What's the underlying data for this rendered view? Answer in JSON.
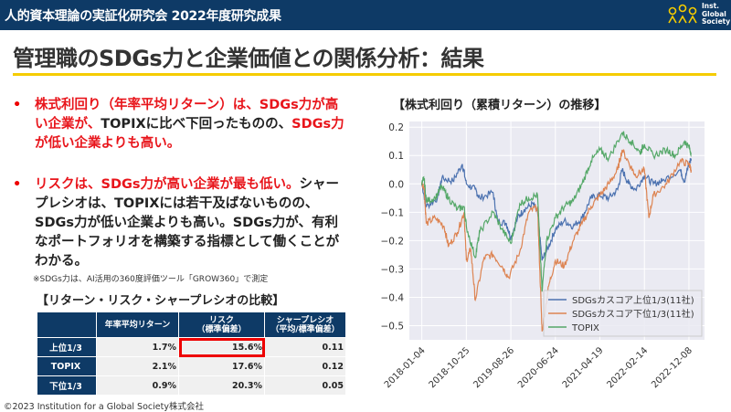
{
  "header": {
    "title": "人的資本理論の実証化研究会 2022年度研究成果",
    "logo_text": [
      "Inst.",
      "Global",
      "Society"
    ]
  },
  "page_title": "管理職のSDGs力と企業価値との関係分析：結果",
  "bullets": [
    {
      "marker": "•",
      "segments": [
        {
          "text": "株式利回り（年率平均リターン）は、SDGs力が高い企業が、",
          "color": "red"
        },
        {
          "text": "TOPIXに比べ下回ったものの、",
          "color": "black"
        },
        {
          "text": "SDGs力が低い企業よりも高い。",
          "color": "red"
        }
      ]
    },
    {
      "marker": "•",
      "segments": [
        {
          "text": "リスクは、SDGs力が高い企業が最も低い。",
          "color": "red"
        },
        {
          "text": "シャープレシオは、TOPIXには若干及ばないものの、SDGs力が低い企業よりも高い。SDGs力が、有利なポートフォリオを構築する指標として働くことがわかる。",
          "color": "black"
        }
      ]
    }
  ],
  "note": "※SDGs力は、AI活用の360度評価ツール「GROW360」で測定",
  "table": {
    "title": "【リターン・リスク・シャープレシオの比較】",
    "headers": [
      "",
      "年率平均リターン",
      "リスク\n（標準偏差）",
      "シャープレシオ\n（平均/標準偏差）"
    ],
    "rows": [
      [
        "上位1/3",
        "1.7%",
        "15.6%",
        "0.11"
      ],
      [
        "TOPIX",
        "2.1%",
        "17.6%",
        "0.12"
      ],
      [
        "下位1/3",
        "0.9%",
        "20.3%",
        "0.05"
      ]
    ],
    "highlight": "上位1/3 リスク"
  },
  "copyright": "©2023  Institution for a Global Society株式会社",
  "chart_data": {
    "type": "line",
    "title": "【株式利回り（累積リターン）の推移】",
    "xlabel": "",
    "ylabel": "",
    "x_ticks": [
      "2018-01-04",
      "2018-10-25",
      "2019-08-26",
      "2020-06-24",
      "2021-04-19",
      "2022-02-14",
      "2022-12-08"
    ],
    "y_ticks": [
      0.2,
      0.1,
      0.0,
      -0.1,
      -0.2,
      -0.3,
      -0.4,
      -0.5
    ],
    "y_tick_labels": [
      "0.2",
      "0.1",
      "0.0",
      "−0.1",
      "−0.2",
      "−0.3",
      "−0.4",
      "−0.5"
    ],
    "ylim": [
      -0.55,
      0.22
    ],
    "xlim_tick_index": [
      -0.28,
      6.35
    ],
    "grid": true,
    "legend_position": "bottom-right",
    "series": [
      {
        "name": "SDGsカスコア上位1/3(11社)",
        "color": "#4c72b0",
        "points": [
          [
            0,
            0
          ],
          [
            0.1,
            -0.08
          ],
          [
            0.35,
            -0.05
          ],
          [
            0.45,
            0.02
          ],
          [
            0.7,
            0.01
          ],
          [
            0.91,
            0.07
          ],
          [
            1.0,
            0.0
          ],
          [
            1.2,
            -0.02
          ],
          [
            1.3,
            -0.05
          ],
          [
            1.6,
            -0.03
          ],
          [
            1.7,
            -0.13
          ],
          [
            1.9,
            -0.14
          ],
          [
            2.0,
            -0.19
          ],
          [
            2.15,
            -0.12
          ],
          [
            2.3,
            -0.09
          ],
          [
            2.5,
            -0.07
          ],
          [
            2.6,
            -0.1
          ],
          [
            2.7,
            -0.27
          ],
          [
            2.85,
            -0.22
          ],
          [
            3.0,
            -0.16
          ],
          [
            3.2,
            -0.13
          ],
          [
            3.4,
            -0.15
          ],
          [
            3.6,
            -0.12
          ],
          [
            3.8,
            -0.05
          ],
          [
            4.0,
            -0.04
          ],
          [
            4.2,
            -0.05
          ],
          [
            4.4,
            -0.02
          ],
          [
            4.5,
            0.05
          ],
          [
            4.65,
            0.0
          ],
          [
            4.8,
            -0.02
          ],
          [
            5.0,
            0.03
          ],
          [
            5.2,
            0.0
          ],
          [
            5.4,
            0.01
          ],
          [
            5.8,
            0.05
          ],
          [
            5.9,
            0.01
          ],
          [
            6.0,
            0.07
          ],
          [
            6.05,
            0.09
          ]
        ]
      },
      {
        "name": "SDGsカスコア下位1/3(11社)",
        "color": "#dd8452",
        "points": [
          [
            0,
            0
          ],
          [
            0.05,
            -0.01
          ],
          [
            0.1,
            -0.14
          ],
          [
            0.3,
            -0.12
          ],
          [
            0.5,
            -0.15
          ],
          [
            0.6,
            -0.22
          ],
          [
            0.8,
            -0.17
          ],
          [
            0.95,
            -0.1
          ],
          [
            1.0,
            -0.27
          ],
          [
            1.1,
            -0.23
          ],
          [
            1.2,
            -0.41
          ],
          [
            1.4,
            -0.26
          ],
          [
            1.6,
            -0.25
          ],
          [
            1.8,
            -0.29
          ],
          [
            1.95,
            -0.33
          ],
          [
            2.2,
            -0.24
          ],
          [
            2.4,
            -0.1
          ],
          [
            2.6,
            -0.08
          ],
          [
            2.65,
            -0.3
          ],
          [
            2.7,
            -0.52
          ],
          [
            2.85,
            -0.36
          ],
          [
            3.0,
            -0.27
          ],
          [
            3.2,
            -0.29
          ],
          [
            3.4,
            -0.2
          ],
          [
            3.6,
            -0.14
          ],
          [
            3.8,
            -0.08
          ],
          [
            4.0,
            -0.04
          ],
          [
            4.2,
            0.0
          ],
          [
            4.4,
            0.05
          ],
          [
            4.5,
            0.12
          ],
          [
            4.7,
            0.06
          ],
          [
            4.8,
            0.03
          ],
          [
            5.0,
            0.05
          ],
          [
            5.1,
            -0.12
          ],
          [
            5.2,
            -0.04
          ],
          [
            5.5,
            0.0
          ],
          [
            5.8,
            0.08
          ],
          [
            6.0,
            0.07
          ],
          [
            6.05,
            0.05
          ]
        ]
      },
      {
        "name": "TOPIX",
        "color": "#55a868",
        "points": [
          [
            0,
            0
          ],
          [
            0.05,
            0.02
          ],
          [
            0.1,
            -0.06
          ],
          [
            0.3,
            -0.05
          ],
          [
            0.45,
            -0.01
          ],
          [
            0.6,
            -0.05
          ],
          [
            0.8,
            -0.09
          ],
          [
            0.95,
            -0.08
          ],
          [
            1.0,
            -0.15
          ],
          [
            1.2,
            -0.26
          ],
          [
            1.3,
            -0.17
          ],
          [
            1.6,
            -0.1
          ],
          [
            1.8,
            -0.16
          ],
          [
            2.0,
            -0.21
          ],
          [
            2.2,
            -0.07
          ],
          [
            2.4,
            -0.05
          ],
          [
            2.6,
            -0.04
          ],
          [
            2.7,
            -0.38
          ],
          [
            2.8,
            -0.2
          ],
          [
            3.0,
            -0.12
          ],
          [
            3.2,
            -0.08
          ],
          [
            3.4,
            -0.06
          ],
          [
            3.6,
            0.0
          ],
          [
            3.8,
            0.08
          ],
          [
            4.0,
            0.12
          ],
          [
            4.2,
            0.09
          ],
          [
            4.5,
            0.18
          ],
          [
            4.7,
            0.15
          ],
          [
            4.9,
            0.11
          ],
          [
            5.0,
            0.14
          ],
          [
            5.2,
            0.1
          ],
          [
            5.5,
            0.12
          ],
          [
            5.7,
            0.1
          ],
          [
            5.9,
            0.15
          ],
          [
            6.0,
            0.13
          ],
          [
            6.05,
            0.11
          ]
        ]
      }
    ]
  }
}
